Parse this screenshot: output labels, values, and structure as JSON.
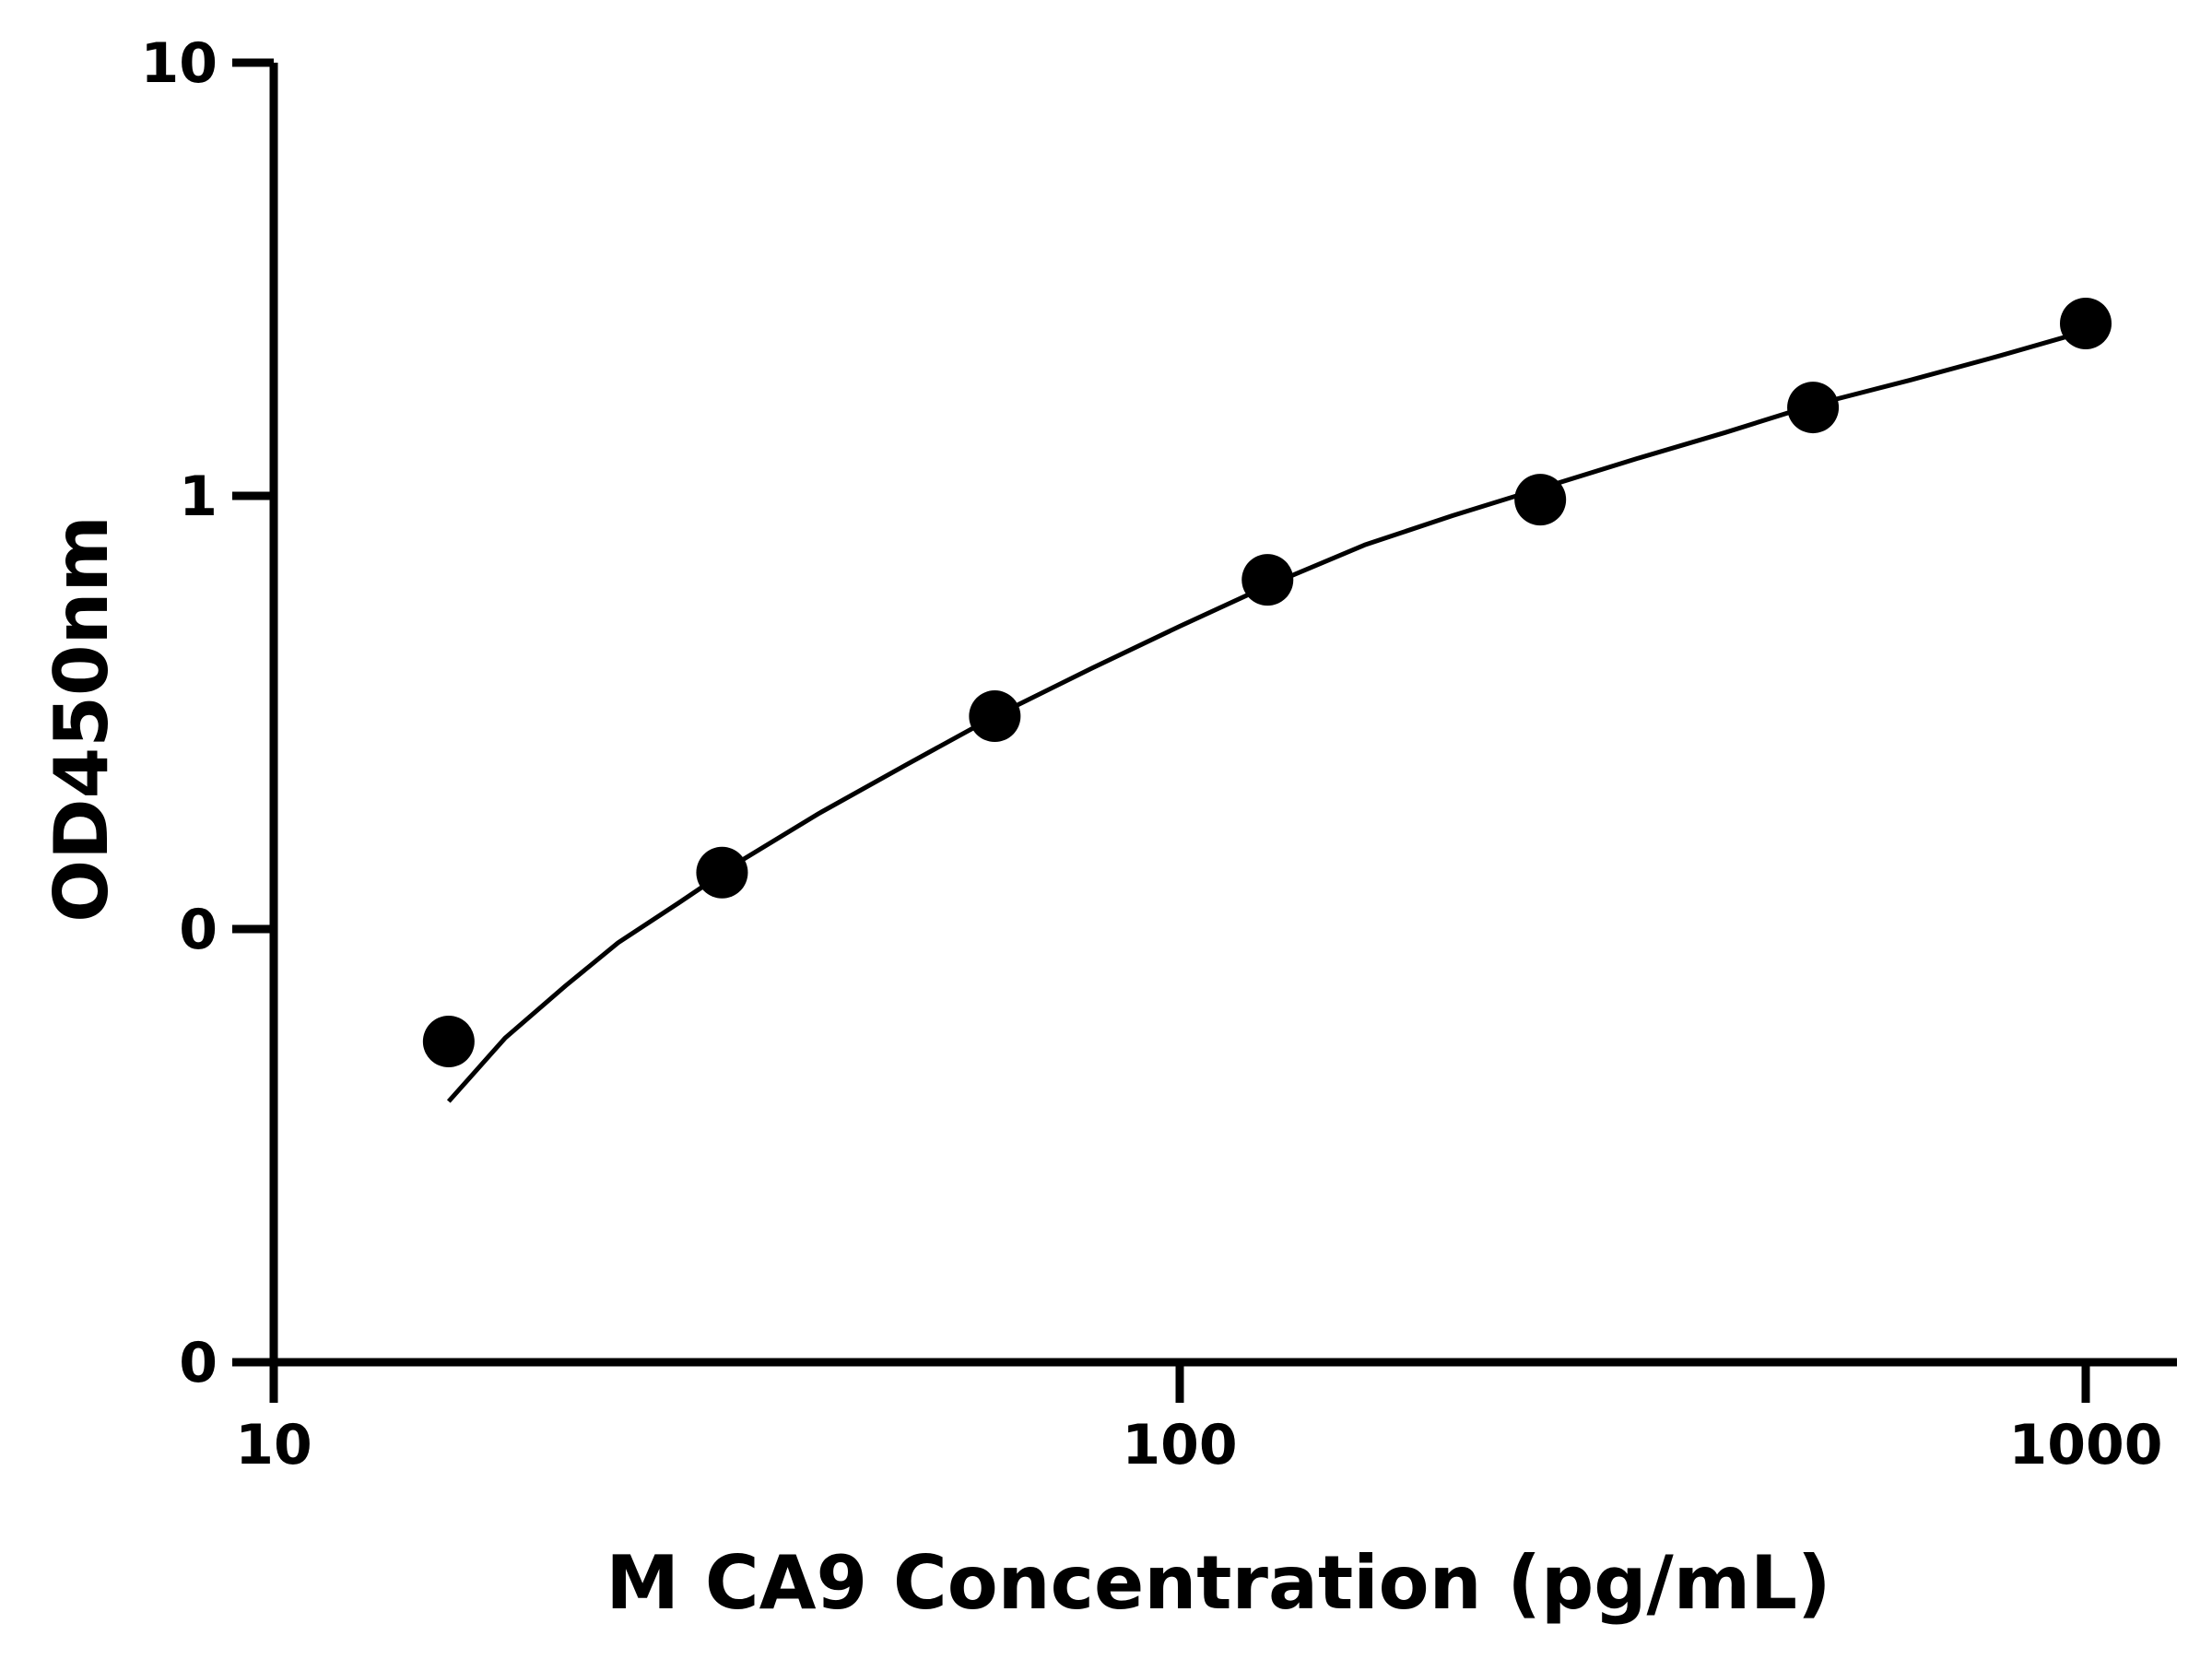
{
  "chart_data": {
    "type": "scatter",
    "xlabel": "M CA9 Concentration (pg/mL)",
    "ylabel": "OD450nm",
    "x_scale": "log",
    "y_scale": "log",
    "xlim": [
      10,
      1000
    ],
    "ylim": [
      0.01,
      10
    ],
    "x_ticks": [
      {
        "value": 10,
        "label": "10"
      },
      {
        "value": 100,
        "label": "100"
      },
      {
        "value": 1000,
        "label": "1000"
      }
    ],
    "y_ticks": [
      {
        "value": 0.01,
        "label": "0"
      },
      {
        "value": 0.1,
        "label": "0"
      },
      {
        "value": 1,
        "label": "1"
      },
      {
        "value": 10,
        "label": "10"
      }
    ],
    "grid": false,
    "series": [
      {
        "kind": "points",
        "x": [
          15.6,
          31.25,
          62.5,
          125,
          250,
          500,
          1000
        ],
        "y": [
          0.055,
          0.135,
          0.31,
          0.64,
          0.98,
          1.6,
          2.5
        ]
      },
      {
        "kind": "fit-curve",
        "x": [
          15.6,
          18,
          21,
          24,
          28,
          33,
          40,
          50,
          62.5,
          80,
          100,
          125,
          160,
          200,
          250,
          320,
          400,
          500,
          640,
          800,
          1000
        ],
        "y": [
          0.04,
          0.056,
          0.074,
          0.093,
          0.115,
          0.145,
          0.185,
          0.24,
          0.31,
          0.4,
          0.5,
          0.62,
          0.77,
          0.9,
          1.04,
          1.22,
          1.4,
          1.62,
          1.85,
          2.1,
          2.4
        ]
      }
    ],
    "colors": {
      "axis": "#000000",
      "points": "#000000",
      "curve": "#000000"
    }
  }
}
